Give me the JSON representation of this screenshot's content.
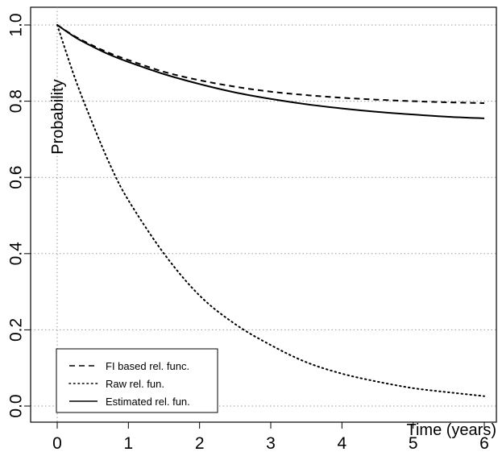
{
  "chart_data": {
    "type": "line",
    "xlabel": "Time (years)",
    "ylabel": "Probability",
    "xlim": [
      0,
      6
    ],
    "ylim": [
      0,
      1
    ],
    "x_ticks": [
      "0",
      "1",
      "2",
      "3",
      "4",
      "5",
      "6"
    ],
    "y_ticks": [
      "0.0",
      "0.2",
      "0.4",
      "0.6",
      "0.8",
      "1.0"
    ],
    "grid": "dotted horizontal lines at y ticks and vertical line at x = 0",
    "legend_position": "bottom-left",
    "series": [
      {
        "name": "FI based rel. func.",
        "style": "dashed",
        "x": [
          0,
          0.25,
          0.5,
          0.75,
          1,
          1.5,
          2,
          2.5,
          3,
          3.5,
          4,
          4.5,
          5,
          5.5,
          6
        ],
        "values": [
          1.0,
          0.97,
          0.946,
          0.925,
          0.908,
          0.877,
          0.855,
          0.838,
          0.825,
          0.816,
          0.809,
          0.804,
          0.8,
          0.797,
          0.795
        ]
      },
      {
        "name": "Raw rel. fun.",
        "style": "dotted",
        "x": [
          0,
          0.25,
          0.5,
          0.75,
          1,
          1.5,
          2,
          2.5,
          3,
          3.5,
          4,
          4.5,
          5,
          5.5,
          6
        ],
        "values": [
          1.0,
          0.86,
          0.74,
          0.63,
          0.54,
          0.4,
          0.29,
          0.215,
          0.16,
          0.115,
          0.085,
          0.064,
          0.047,
          0.036,
          0.026
        ]
      },
      {
        "name": "Estimated rel. fun.",
        "style": "solid",
        "x": [
          0,
          0.25,
          0.5,
          0.75,
          1,
          1.5,
          2,
          2.5,
          3,
          3.5,
          4,
          4.5,
          5,
          5.5,
          6
        ],
        "values": [
          1.0,
          0.968,
          0.943,
          0.921,
          0.903,
          0.871,
          0.845,
          0.823,
          0.806,
          0.792,
          0.781,
          0.772,
          0.765,
          0.759,
          0.755
        ]
      }
    ]
  }
}
